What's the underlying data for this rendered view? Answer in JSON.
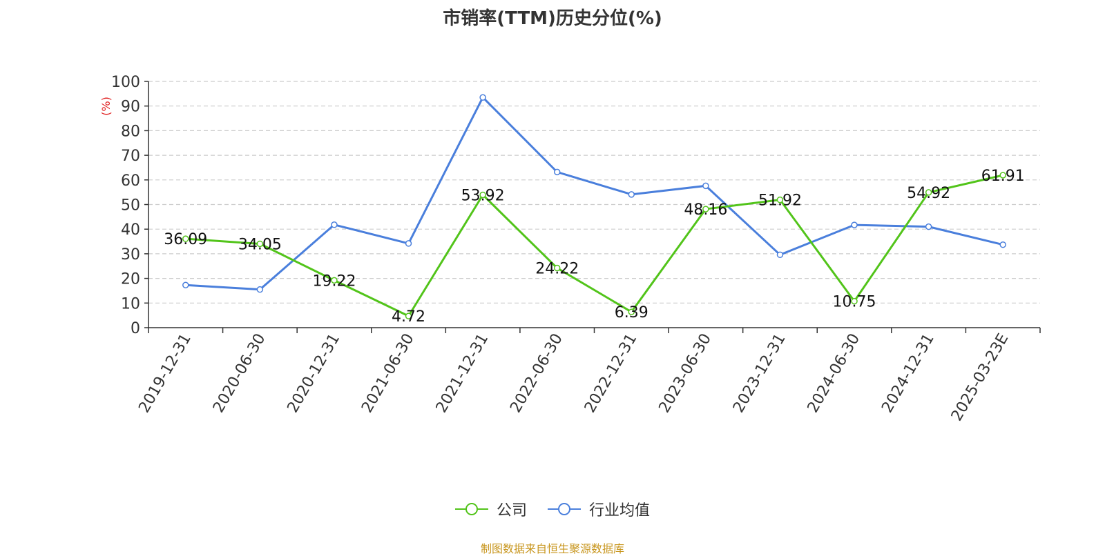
{
  "chart_data": {
    "type": "line",
    "title": "市销率(TTM)历史分位(%)",
    "ylabel": "(%)",
    "xlabel": "",
    "ylim": [
      0,
      100
    ],
    "yticks": [
      0,
      10,
      20,
      30,
      40,
      50,
      60,
      70,
      80,
      90,
      100
    ],
    "grid": true,
    "legend_position": "bottom",
    "categories": [
      "2019-12-31",
      "2020-06-30",
      "2020-12-31",
      "2021-06-30",
      "2021-12-31",
      "2022-06-30",
      "2022-12-31",
      "2023-06-30",
      "2023-12-31",
      "2024-06-30",
      "2024-12-31",
      "2025-03-23E"
    ],
    "series": [
      {
        "name": "公司",
        "color": "#52c41a",
        "values": [
          36.09,
          34.05,
          19.22,
          4.72,
          53.92,
          24.22,
          6.39,
          48.16,
          51.92,
          10.75,
          54.92,
          61.91
        ],
        "labels": [
          "36.09",
          "34.05",
          "19.22",
          "4.72",
          "53.92",
          "24.22",
          "6.39",
          "48.16",
          "51.92",
          "10.75",
          "54.92",
          "61.91"
        ]
      },
      {
        "name": "行业均值",
        "color": "#4a7fdc",
        "values": [
          17.3,
          15.5,
          41.8,
          34.2,
          93.5,
          63.2,
          54.1,
          57.6,
          29.6,
          41.7,
          41.0,
          33.7
        ]
      }
    ],
    "source": "制图数据来自恒生聚源数据库"
  }
}
